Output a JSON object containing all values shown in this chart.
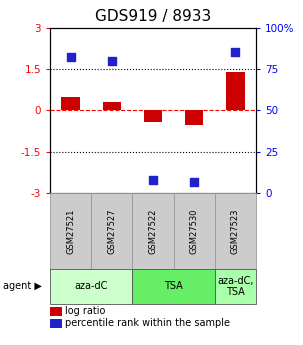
{
  "title": "GDS919 / 8933",
  "samples": [
    "GSM27521",
    "GSM27527",
    "GSM27522",
    "GSM27530",
    "GSM27523"
  ],
  "log_ratio": [
    0.5,
    0.3,
    -0.42,
    -0.52,
    1.4
  ],
  "percentile_rank": [
    82,
    80,
    8,
    7,
    85
  ],
  "ylim_left": [
    -3,
    3
  ],
  "ylim_right": [
    0,
    100
  ],
  "yticks_left": [
    -3,
    -1.5,
    0,
    1.5,
    3
  ],
  "yticks_right": [
    0,
    25,
    50,
    75,
    100
  ],
  "ytick_labels_left": [
    "-3",
    "-1.5",
    "0",
    "1.5",
    "3"
  ],
  "ytick_labels_right": [
    "0",
    "25",
    "50",
    "75",
    "100%"
  ],
  "hlines": [
    1.5,
    0,
    -1.5
  ],
  "hline_styles": [
    "dotted",
    "dashed",
    "dotted"
  ],
  "hline_colors": [
    "black",
    "red",
    "black"
  ],
  "bar_color": "#cc0000",
  "scatter_color": "#2222cc",
  "bar_width": 0.45,
  "scatter_size": 40,
  "groups": [
    {
      "label": "aza-dC",
      "indices": [
        0,
        1
      ],
      "color": "#ccffcc"
    },
    {
      "label": "TSA",
      "indices": [
        2,
        3
      ],
      "color": "#66ee66"
    },
    {
      "label": "aza-dC,\nTSA",
      "indices": [
        4
      ],
      "color": "#aaffaa"
    }
  ],
  "sample_box_color": "#cccccc",
  "sample_box_edge": "#999999",
  "legend_bar_label": "log ratio",
  "legend_scatter_label": "percentile rank within the sample",
  "title_fontsize": 11,
  "tick_fontsize": 7.5,
  "sample_fontsize": 6,
  "agent_fontsize": 7,
  "legend_fontsize": 7
}
